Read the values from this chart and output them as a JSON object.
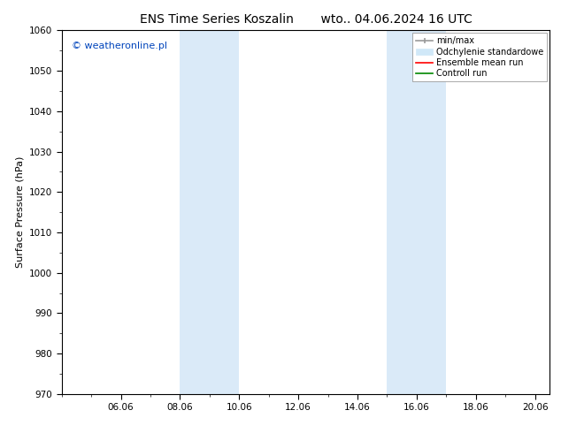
{
  "title": "ENS Time Series Koszalin",
  "title2": "wto.. 04.06.2024 16 UTC",
  "ylabel": "Surface Pressure (hPa)",
  "ylim": [
    970,
    1060
  ],
  "yticks": [
    970,
    980,
    990,
    1000,
    1010,
    1020,
    1030,
    1040,
    1050,
    1060
  ],
  "xlim": [
    4.0,
    20.5
  ],
  "xtick_positions": [
    6.0,
    8.0,
    10.0,
    12.0,
    14.0,
    16.0,
    18.0,
    20.0
  ],
  "xtick_labels": [
    "06.06",
    "08.06",
    "10.06",
    "12.06",
    "14.06",
    "16.06",
    "18.06",
    "20.06"
  ],
  "shaded_bands": [
    {
      "xstart": 8.0,
      "xend": 10.0
    },
    {
      "xstart": 15.0,
      "xend": 17.0
    }
  ],
  "band_color": "#daeaf8",
  "copyright_text": "© weatheronline.pl",
  "copyright_color": "#0044bb",
  "legend_items": [
    {
      "label": "min/max",
      "color": "#aaaaaa"
    },
    {
      "label": "Odchylenie standardowe",
      "color": "#ccddee"
    },
    {
      "label": "Ensemble mean run",
      "color": "#ff0000"
    },
    {
      "label": "Controll run",
      "color": "#008800"
    }
  ],
  "bg_color": "#ffffff",
  "plot_bg_color": "#ffffff",
  "border_color": "#000000",
  "font_size_title": 10,
  "font_size_axis": 8,
  "font_size_tick": 7.5,
  "font_size_legend": 7,
  "font_size_copyright": 8
}
